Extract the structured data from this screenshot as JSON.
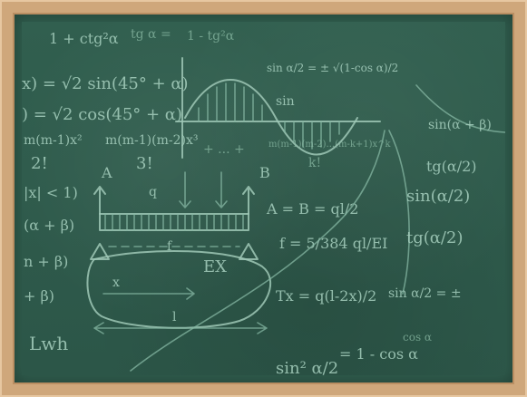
{
  "scene": {
    "frame_color": "#cfa77b",
    "board_color": "#2f5b4c",
    "chalk_color": "#a7d0bf"
  },
  "formulas": [
    {
      "id": "f1",
      "text": "1 + ctg²α"
    },
    {
      "id": "f2",
      "text": "tg α ="
    },
    {
      "id": "f3",
      "text": "1 - tg²α"
    },
    {
      "id": "f4",
      "text": "x) = √2 sin(45° + α)"
    },
    {
      "id": "f5",
      "text": ") = √2 cos(45° + α)"
    },
    {
      "id": "f6",
      "text": "m(m-1)x²"
    },
    {
      "id": "f7",
      "text": "2!"
    },
    {
      "id": "f8",
      "text": "m(m-1)(m-2)x³"
    },
    {
      "id": "f9",
      "text": "3!"
    },
    {
      "id": "f10",
      "text": "+ ... +"
    },
    {
      "id": "f11",
      "text": "m(m-1)(m-2)...(m-k+1)x^k"
    },
    {
      "id": "f12",
      "text": "k!"
    },
    {
      "id": "f13",
      "text": "sin α/2 = ± √(1-cos α)/2"
    },
    {
      "id": "f14",
      "text": "sin"
    },
    {
      "id": "f15",
      "text": "|x| < 1)"
    },
    {
      "id": "f16",
      "text": "A"
    },
    {
      "id": "f17",
      "text": "B"
    },
    {
      "id": "f18",
      "text": "q"
    },
    {
      "id": "f19",
      "text": "A = B = ql/2"
    },
    {
      "id": "f20",
      "text": "f = 5/384 ql/EI"
    },
    {
      "id": "f21",
      "text": "(α + β)"
    },
    {
      "id": "f22",
      "text": "n + β)"
    },
    {
      "id": "f23",
      "text": "+ β)"
    },
    {
      "id": "f24",
      "text": "x"
    },
    {
      "id": "f25",
      "text": "l"
    },
    {
      "id": "f26",
      "text": "EX"
    },
    {
      "id": "f27",
      "text": "f"
    },
    {
      "id": "f28",
      "text": "Tx = q(l-2x)/2"
    },
    {
      "id": "f29",
      "text": "sin α/2 = ±"
    },
    {
      "id": "f30",
      "text": "cos α"
    },
    {
      "id": "f31",
      "text": "Lwh"
    },
    {
      "id": "f32",
      "text": "sin² α/2"
    },
    {
      "id": "f33",
      "text": "= 1 - cos α"
    },
    {
      "id": "f34",
      "text": "sin(α + β)"
    },
    {
      "id": "f35",
      "text": "tg(α/2)"
    },
    {
      "id": "f36",
      "text": "sin(α/2)"
    },
    {
      "id": "f37",
      "text": "tg(α/2)"
    }
  ]
}
